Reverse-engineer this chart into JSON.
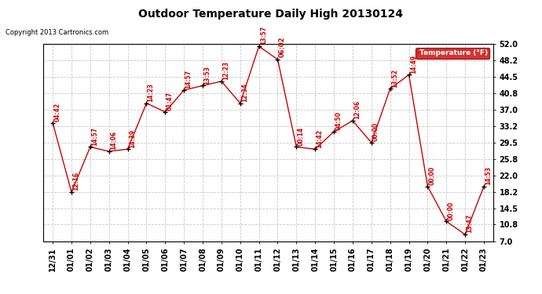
{
  "title": "Outdoor Temperature Daily High 20130124",
  "copyright": "Copyright 2013 Cartronics.com",
  "legend_label": "Temperature (°F)",
  "x_labels": [
    "12/31",
    "01/01",
    "01/02",
    "01/03",
    "01/04",
    "01/05",
    "01/06",
    "01/07",
    "01/08",
    "01/09",
    "01/10",
    "01/11",
    "01/12",
    "01/13",
    "01/14",
    "01/15",
    "01/16",
    "01/17",
    "01/18",
    "01/19",
    "01/20",
    "01/21",
    "01/22",
    "01/23"
  ],
  "y_values": [
    34.0,
    18.2,
    28.5,
    27.5,
    28.0,
    38.5,
    36.5,
    41.5,
    42.5,
    43.5,
    38.5,
    51.5,
    48.5,
    28.5,
    28.0,
    32.0,
    34.5,
    29.5,
    41.8,
    45.0,
    19.5,
    11.5,
    8.5,
    19.5
  ],
  "point_labels": [
    "04:42",
    "12:16",
    "14:57",
    "14:06",
    "14:39",
    "14:23",
    "01:47",
    "14:57",
    "13:53",
    "12:23",
    "12:34",
    "13:57",
    "06:02",
    "00:14",
    "14:42",
    "04:50",
    "12:06",
    "00:00",
    "13:52",
    "14:49",
    "00:00",
    "00:00",
    "13:47",
    "14:53"
  ],
  "highlight_index": 12,
  "ylim": [
    7.0,
    52.0
  ],
  "yticks": [
    7.0,
    10.8,
    14.5,
    18.2,
    22.0,
    25.8,
    29.5,
    33.2,
    37.0,
    40.8,
    44.5,
    48.2,
    52.0
  ],
  "line_color": "#cc0000",
  "marker_color": "#000000",
  "grid_color": "#c8c8c8",
  "bg_color": "#ffffff",
  "legend_bg": "#cc0000",
  "legend_text_color": "#ffffff",
  "border_color": "#000000"
}
